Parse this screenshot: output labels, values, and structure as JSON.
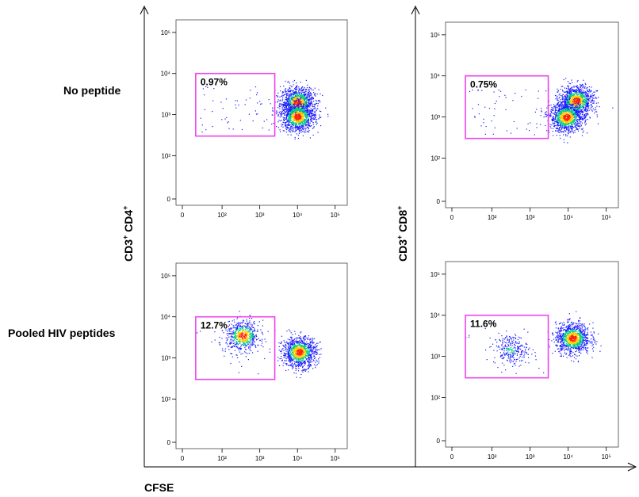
{
  "row_labels": [
    "No peptide",
    "Pooled HIV peptides"
  ],
  "y_titles": {
    "left": {
      "main": "CD3",
      "sup1": "+",
      "mid": " CD4",
      "sup2": "+"
    },
    "right": {
      "main": "CD3",
      "sup1": "+",
      "mid": " CD8",
      "sup2": "+"
    }
  },
  "x_title": "CFSE",
  "chart_data": [
    {
      "type": "scatter",
      "subtype": "flow-cytometry-density",
      "row": "No peptide",
      "ylabel": "CD3+ CD4+",
      "xlabel": "CFSE",
      "x_ticks": [
        "0",
        "10^2",
        "10^3",
        "10^4",
        "10^5"
      ],
      "y_ticks": [
        "0",
        "10^2",
        "10^3",
        "10^4",
        "10^5"
      ],
      "x_scale": "biexponential",
      "y_scale": "biexponential",
      "gate": {
        "x_range": [
          20,
          2500
        ],
        "y_range": [
          300,
          10000
        ],
        "percent": "0.97%"
      },
      "populations": [
        {
          "x_center": 10000,
          "y_center": 2000,
          "density": "high"
        },
        {
          "x_center": 10000,
          "y_center": 900,
          "density": "high"
        }
      ]
    },
    {
      "type": "scatter",
      "subtype": "flow-cytometry-density",
      "row": "No peptide",
      "ylabel": "CD3+ CD8+",
      "xlabel": "CFSE",
      "x_ticks": [
        "0",
        "10^2",
        "10^3",
        "10^4",
        "10^5"
      ],
      "y_ticks": [
        "0",
        "10^2",
        "10^3",
        "10^4",
        "10^5"
      ],
      "x_scale": "biexponential",
      "y_scale": "biexponential",
      "gate": {
        "x_range": [
          20,
          3000
        ],
        "y_range": [
          300,
          10000
        ],
        "percent": "0.75%"
      },
      "populations": [
        {
          "x_center": 16000,
          "y_center": 2500,
          "density": "high"
        },
        {
          "x_center": 9000,
          "y_center": 1000,
          "density": "high"
        }
      ]
    },
    {
      "type": "scatter",
      "subtype": "flow-cytometry-density",
      "row": "Pooled HIV peptides",
      "ylabel": "CD3+ CD4+",
      "xlabel": "CFSE",
      "x_ticks": [
        "0",
        "10^2",
        "10^3",
        "10^4",
        "10^5"
      ],
      "y_ticks": [
        "0",
        "10^2",
        "10^3",
        "10^4",
        "10^5"
      ],
      "x_scale": "biexponential",
      "y_scale": "biexponential",
      "gate": {
        "x_range": [
          20,
          2500
        ],
        "y_range": [
          300,
          10000
        ],
        "percent": "12.7%"
      },
      "populations": [
        {
          "x_center": 350,
          "y_center": 3500,
          "density": "medium"
        },
        {
          "x_center": 11000,
          "y_center": 1400,
          "density": "high"
        }
      ]
    },
    {
      "type": "scatter",
      "subtype": "flow-cytometry-density",
      "row": "Pooled HIV peptides",
      "ylabel": "CD3+ CD8+",
      "xlabel": "CFSE",
      "x_ticks": [
        "0",
        "10^2",
        "10^3",
        "10^4",
        "10^5"
      ],
      "y_ticks": [
        "0",
        "10^2",
        "10^3",
        "10^4",
        "10^5"
      ],
      "x_scale": "biexponential",
      "y_scale": "biexponential",
      "gate": {
        "x_range": [
          20,
          3000
        ],
        "y_range": [
          300,
          10000
        ],
        "percent": "11.6%"
      },
      "populations": [
        {
          "x_center": 300,
          "y_center": 1500,
          "density": "low"
        },
        {
          "x_center": 13000,
          "y_center": 2800,
          "density": "high"
        }
      ]
    }
  ],
  "colors": {
    "gate": "#ee44ee",
    "dot_low": "#1a1aff",
    "dot_mid": "#00cc88",
    "dot_high": "#ffcc00",
    "dot_peak": "#ff2200"
  }
}
